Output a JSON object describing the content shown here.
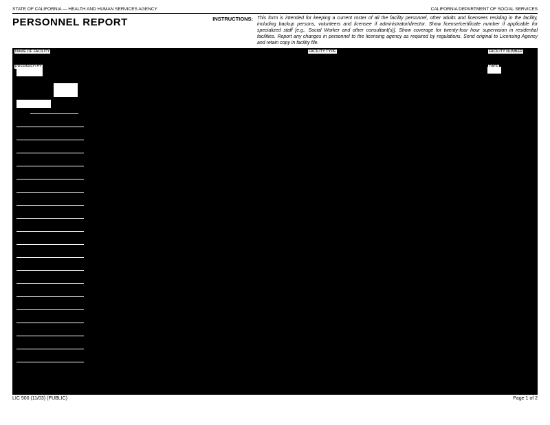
{
  "header": {
    "agency_left": "STATE OF CALIFORNIA — HEALTH AND HUMAN SERVICES AGENCY",
    "agency_right": "CALIFORNIA DEPARTMENT OF SOCIAL SERVICES",
    "title": "PERSONNEL REPORT",
    "instructions_label": "INSTRUCTIONS:",
    "instructions_text": "This form is intended for keeping a current roster of all the facility personnel, other adults and licensees residing in the facility, including backup persons, volunteers and licensee if administrator/director. Show license/certificate number if applicable for specialized staff [e.g., Social Worker and other consultant(s)]. Show coverage for twenty-four hour supervision in residential facilities. Report any changes in personnel to the licensing agency as required by regulations. Send original to Licensing Agency and retain copy in facility file."
  },
  "fields": {
    "name_of_facility_label": "NAME OF FACILITY",
    "facility_type_label": "FACILITY TYPE",
    "facility_number_label": "FACILITY NUMBER",
    "prepared_by_label": "PREPARED BY",
    "date_label": "DATE"
  },
  "footer": {
    "form_id": "LIC 500 (11/03) (PUBLIC)",
    "page": "Page 1 of 2"
  },
  "colors": {
    "bg": "#ffffff",
    "ink": "#000000"
  }
}
